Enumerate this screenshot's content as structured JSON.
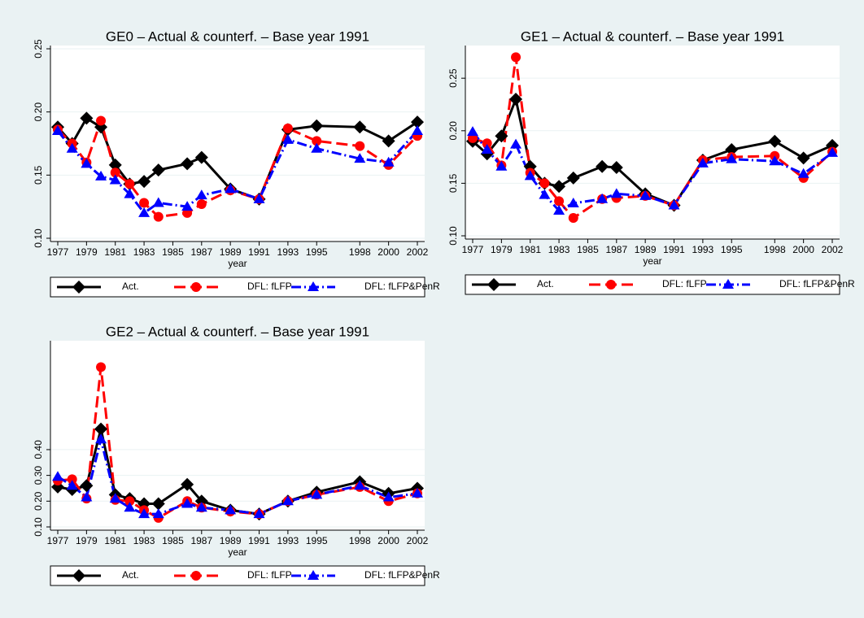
{
  "chart_data": [
    {
      "type": "line",
      "title": "GE0 – Actual & counterf. – Base year 1991",
      "x_label": "year",
      "x": [
        1977,
        1978,
        1979,
        1980,
        1981,
        1982,
        1983,
        1984,
        1986,
        1987,
        1989,
        1991,
        1993,
        1995,
        1998,
        2000,
        2002
      ],
      "xlim": [
        1977,
        2002
      ],
      "xticks": [
        1977,
        1979,
        1981,
        1983,
        1985,
        1987,
        1989,
        1991,
        1993,
        1995,
        1998,
        2000,
        2002
      ],
      "ylim": [
        0.1,
        0.25
      ],
      "yticks": [
        {
          "value": 0.1,
          "label": "0.10"
        },
        {
          "value": 0.15,
          "label": "0.15"
        },
        {
          "value": 0.2,
          "label": "0.20"
        },
        {
          "value": 0.25,
          "label": "0.25"
        }
      ],
      "grid": true,
      "series": [
        {
          "name": "Act.",
          "color": "#000000",
          "values": [
            0.188,
            0.175,
            0.195,
            0.188,
            0.158,
            0.143,
            0.145,
            0.154,
            0.159,
            0.164,
            0.139,
            0.131,
            0.186,
            0.189,
            0.188,
            0.177,
            0.192
          ]
        },
        {
          "name": "DFL: fLFP",
          "color": "#ff0000",
          "values": [
            0.186,
            0.175,
            0.16,
            0.193,
            0.152,
            0.143,
            0.128,
            0.117,
            0.12,
            0.127,
            0.138,
            0.131,
            0.187,
            0.177,
            0.173,
            0.158,
            0.181
          ]
        },
        {
          "name": "DFL: fLFP&PenR",
          "color": "#0000ff",
          "values": [
            0.185,
            0.171,
            0.159,
            0.149,
            0.146,
            0.135,
            0.12,
            0.128,
            0.125,
            0.134,
            0.139,
            0.131,
            0.178,
            0.171,
            0.163,
            0.16,
            0.185
          ]
        }
      ]
    },
    {
      "type": "line",
      "title": "GE1 – Actual & counterf. – Base year 1991",
      "x_label": "year",
      "x": [
        1977,
        1978,
        1979,
        1980,
        1981,
        1982,
        1983,
        1984,
        1986,
        1987,
        1989,
        1991,
        1993,
        1995,
        1998,
        2000,
        2002
      ],
      "xlim": [
        1977,
        2002
      ],
      "xticks": [
        1977,
        1979,
        1981,
        1983,
        1985,
        1987,
        1989,
        1991,
        1993,
        1995,
        1998,
        2000,
        2002
      ],
      "ylim": [
        0.1,
        0.278
      ],
      "yticks": [
        {
          "value": 0.1,
          "label": "0.10"
        },
        {
          "value": 0.15,
          "label": "0.15"
        },
        {
          "value": 0.2,
          "label": "0.20"
        },
        {
          "value": 0.25,
          "label": "0.25"
        }
      ],
      "grid": true,
      "series": [
        {
          "name": "Act.",
          "color": "#000000",
          "values": [
            0.19,
            0.178,
            0.195,
            0.23,
            0.166,
            0.15,
            0.147,
            0.155,
            0.166,
            0.165,
            0.14,
            0.129,
            0.172,
            0.182,
            0.19,
            0.174,
            0.186
          ]
        },
        {
          "name": "DFL: fLFP",
          "color": "#ff0000",
          "values": [
            0.193,
            0.188,
            0.167,
            0.27,
            0.16,
            0.15,
            0.133,
            0.117,
            0.135,
            0.136,
            0.138,
            0.129,
            0.172,
            0.175,
            0.176,
            0.155,
            0.18
          ]
        },
        {
          "name": "DFL: fLFP&PenR",
          "color": "#0000ff",
          "values": [
            0.199,
            0.182,
            0.166,
            0.187,
            0.157,
            0.139,
            0.124,
            0.131,
            0.135,
            0.14,
            0.138,
            0.129,
            0.169,
            0.173,
            0.171,
            0.159,
            0.179
          ]
        }
      ]
    },
    {
      "type": "line",
      "title": "GE2 – Actual & counterf. – Base year 1991",
      "x_label": "year",
      "x": [
        1977,
        1978,
        1979,
        1980,
        1981,
        1982,
        1983,
        1984,
        1986,
        1987,
        1989,
        1991,
        1993,
        1995,
        1998,
        2000,
        2002
      ],
      "xlim": [
        1977,
        2002
      ],
      "xticks": [
        1977,
        1979,
        1981,
        1983,
        1985,
        1987,
        1989,
        1991,
        1993,
        1995,
        1998,
        2000,
        2002
      ],
      "ylim": [
        0.1,
        0.81
      ],
      "yticks": [
        {
          "value": 0.1,
          "label": "0.10"
        },
        {
          "value": 0.2,
          "label": "0.20"
        },
        {
          "value": 0.3,
          "label": "0.30"
        },
        {
          "value": 0.4,
          "label": "0.40"
        }
      ],
      "grid": true,
      "series": [
        {
          "name": "Act.",
          "color": "#000000",
          "values": [
            0.255,
            0.245,
            0.26,
            0.48,
            0.225,
            0.21,
            0.19,
            0.19,
            0.265,
            0.2,
            0.165,
            0.15,
            0.2,
            0.235,
            0.275,
            0.23,
            0.25
          ]
        },
        {
          "name": "DFL: fLFP",
          "color": "#ff0000",
          "values": [
            0.28,
            0.285,
            0.21,
            0.72,
            0.205,
            0.2,
            0.165,
            0.135,
            0.2,
            0.175,
            0.16,
            0.15,
            0.2,
            0.225,
            0.255,
            0.2,
            0.23
          ]
        },
        {
          "name": "DFL: fLFP&PenR",
          "color": "#0000ff",
          "values": [
            0.295,
            0.26,
            0.215,
            0.44,
            0.21,
            0.175,
            0.15,
            0.15,
            0.19,
            0.175,
            0.165,
            0.15,
            0.2,
            0.225,
            0.26,
            0.215,
            0.23
          ]
        }
      ]
    }
  ]
}
